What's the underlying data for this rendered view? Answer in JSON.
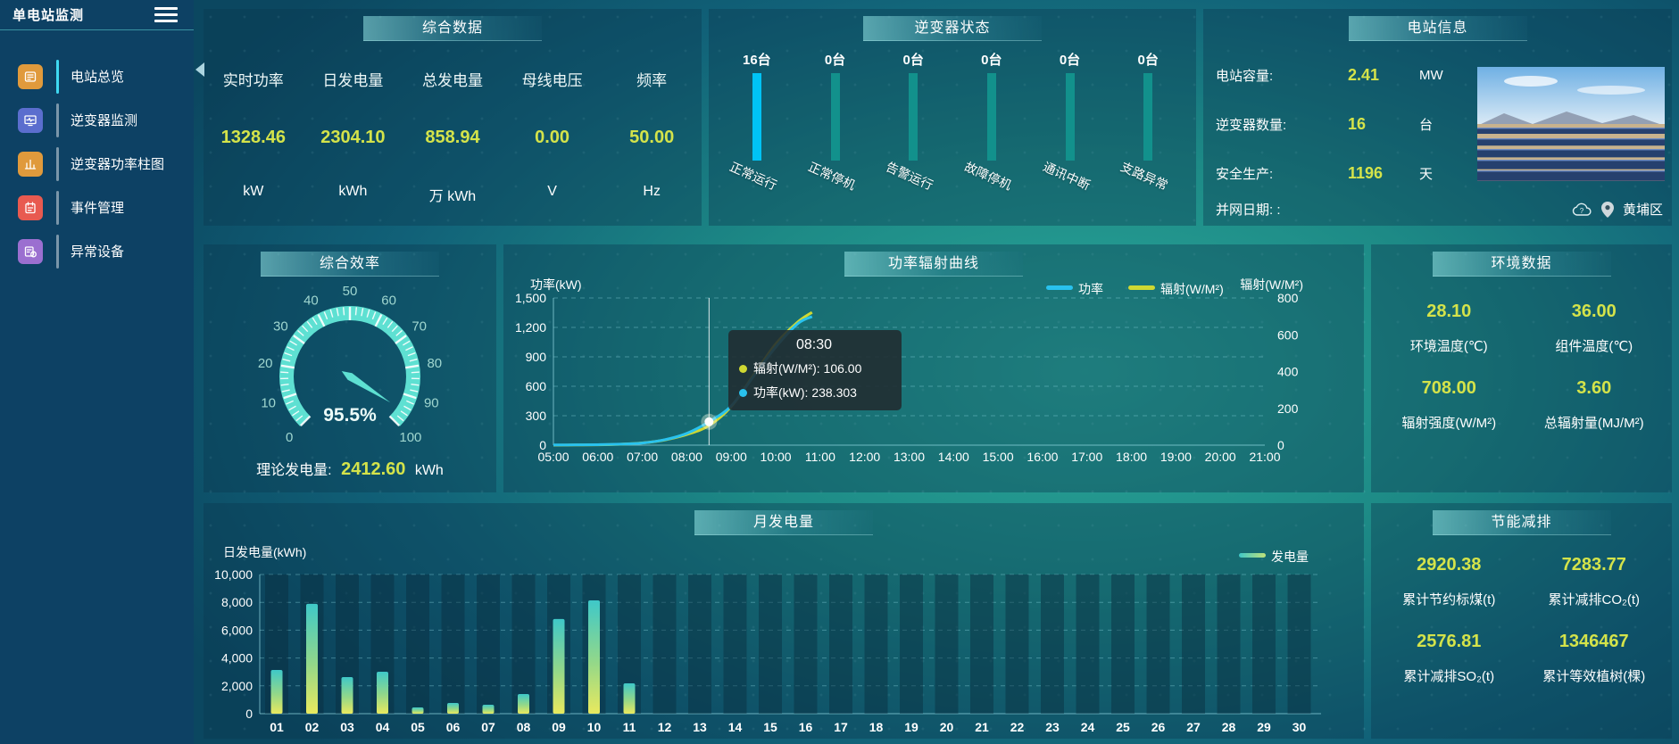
{
  "header": {
    "title": "单电站监测"
  },
  "sidebar": {
    "items": [
      {
        "label": "电站总览",
        "icon": "overview-icon",
        "color": "#e09a3c",
        "active": true
      },
      {
        "label": "逆变器监测",
        "icon": "inverter-monitor-icon",
        "color": "#5b6ece",
        "active": false
      },
      {
        "label": "逆变器功率柱图",
        "icon": "power-bars-icon",
        "color": "#e09a3c",
        "active": false
      },
      {
        "label": "事件管理",
        "icon": "event-manage-icon",
        "color": "#e85a50",
        "active": false
      },
      {
        "label": "异常设备",
        "icon": "abnormal-device-icon",
        "color": "#9b6fd0",
        "active": false
      }
    ]
  },
  "panels": {
    "summary": {
      "title": "综合数据",
      "metrics": [
        {
          "label": "实时功率",
          "value": "1328.46",
          "unit": "kW"
        },
        {
          "label": "日发电量",
          "value": "2304.10",
          "unit": "kWh"
        },
        {
          "label": "总发电量",
          "value": "858.94",
          "unit": "万 kWh"
        },
        {
          "label": "母线电压",
          "value": "0.00",
          "unit": "V"
        },
        {
          "label": "频率",
          "value": "50.00",
          "unit": "Hz"
        }
      ]
    },
    "inverter_status": {
      "title": "逆变器状态"
    },
    "station_info": {
      "title": "电站信息",
      "rows": [
        {
          "label": "电站容量:",
          "value": "2.41",
          "unit": "MW"
        },
        {
          "label": "逆变器数量:",
          "value": "16",
          "unit": "台"
        },
        {
          "label": "安全生产:",
          "value": "1196",
          "unit": "天"
        }
      ],
      "grid_date_label": "并网日期: ",
      "grid_date_value": ":",
      "location": "黄埔区"
    },
    "efficiency": {
      "title": "综合效率",
      "theory_label": "理论发电量:",
      "theory_value": "2412.60",
      "theory_unit": "kWh"
    },
    "power_radiation": {
      "title": "功率辐射曲线"
    },
    "environment": {
      "title": "环境数据",
      "stats": [
        {
          "value": "28.10",
          "label": "环境温度(℃)"
        },
        {
          "value": "36.00",
          "label": "组件温度(℃)"
        },
        {
          "value": "708.00",
          "label": "辐射强度(W/M²)"
        },
        {
          "value": "3.60",
          "label": "总辐射量(MJ/M²)"
        }
      ]
    },
    "monthly": {
      "title": "月发电量"
    },
    "saving": {
      "title": "节能减排",
      "stats": [
        {
          "value": "2920.38",
          "label": "累计节约标煤(t)"
        },
        {
          "value": "7283.77",
          "label": "累计减排CO₂(t)"
        },
        {
          "value": "2576.81",
          "label": "累计减排SO₂(t)"
        },
        {
          "value": "1346467",
          "label": "累计等效植树(棵)"
        }
      ]
    }
  },
  "colors": {
    "value_yellow": "#d4e34a",
    "bar_highlight": "#00c3f5",
    "bar_normal": "#12918c",
    "gauge_arc": "#5ee0d2",
    "line_power": "#29c2ee",
    "line_radiation": "#cfd832",
    "axis": "rgba(150,220,230,0.7)",
    "grid": "rgba(140,215,225,0.4)"
  },
  "chart_data": [
    {
      "id": "inverter-status",
      "type": "bar",
      "title": "逆变器状态",
      "categories": [
        "正常运行",
        "正常停机",
        "告警运行",
        "故障停机",
        "通讯中断",
        "支路异常"
      ],
      "values": [
        16,
        0,
        0,
        0,
        0,
        0
      ],
      "count_labels": [
        "16台",
        "0台",
        "0台",
        "0台",
        "0台",
        "0台"
      ],
      "note": "equal-height pictorial status bars; first category highlighted blue"
    },
    {
      "id": "efficiency-gauge",
      "type": "gauge",
      "title": "综合效率",
      "value": 95.5,
      "display": "95.5%",
      "min": 0,
      "max": 100,
      "tick_step": 10
    },
    {
      "id": "power-radiation",
      "type": "line",
      "title": "功率辐射曲线",
      "x_ticks": [
        "05:00",
        "06:00",
        "07:00",
        "08:00",
        "09:00",
        "10:00",
        "11:00",
        "12:00",
        "13:00",
        "14:00",
        "15:00",
        "16:00",
        "17:00",
        "18:00",
        "19:00",
        "20:00",
        "21:00"
      ],
      "left_axis": {
        "label": "功率(kW)",
        "ticks": [
          0,
          300,
          600,
          900,
          1200,
          1500
        ],
        "tick_labels": [
          "0",
          "300",
          "600",
          "900",
          "1,200",
          "1,500"
        ],
        "max": 1500
      },
      "right_axis": {
        "label": "辐射(W/M²)",
        "ticks": [
          0,
          200,
          400,
          600,
          800
        ],
        "tick_labels": [
          "0",
          "200",
          "400",
          "600",
          "800"
        ],
        "max": 800
      },
      "legend": [
        {
          "name": "功率",
          "color": "#29c2ee"
        },
        {
          "name": "辐射(W/M²)",
          "color": "#cfd832"
        }
      ],
      "rows_format": [
        "time",
        "power_kw",
        "radiation_wm2"
      ],
      "rows": [
        [
          "05:00",
          2,
          0
        ],
        [
          "05:30",
          3,
          1
        ],
        [
          "06:00",
          5,
          2
        ],
        [
          "06:30",
          10,
          5
        ],
        [
          "07:00",
          22,
          12
        ],
        [
          "07:30",
          55,
          28
        ],
        [
          "08:00",
          120,
          58
        ],
        [
          "08:30",
          238.3,
          106
        ],
        [
          "09:00",
          400,
          210
        ],
        [
          "09:30",
          700,
          380
        ],
        [
          "10:00",
          1000,
          550
        ],
        [
          "10:30",
          1240,
          670
        ],
        [
          "10:49",
          1310,
          722
        ]
      ],
      "marker_time": "08:30",
      "tooltip": {
        "time": "08:30",
        "rows": [
          {
            "name": "辐射(W/M²)",
            "value": "106.00",
            "color": "#cfd832"
          },
          {
            "name": "功率(kW)",
            "value": "238.303",
            "color": "#29c2ee"
          }
        ]
      }
    },
    {
      "id": "monthly-generation",
      "type": "bar",
      "title": "月发电量",
      "ylabel": "日发电量(kWh)",
      "legend": "发电量",
      "categories": [
        "01",
        "02",
        "03",
        "04",
        "05",
        "06",
        "07",
        "08",
        "09",
        "10",
        "11",
        "12",
        "13",
        "14",
        "15",
        "16",
        "17",
        "18",
        "19",
        "20",
        "21",
        "22",
        "23",
        "24",
        "25",
        "26",
        "27",
        "28",
        "29",
        "30"
      ],
      "values": [
        3140,
        7890,
        2630,
        3010,
        450,
        770,
        640,
        1410,
        6800,
        8140,
        2180,
        0,
        0,
        0,
        0,
        0,
        0,
        0,
        0,
        0,
        0,
        0,
        0,
        0,
        0,
        0,
        0,
        0,
        0,
        0
      ],
      "ylim": [
        0,
        10000
      ],
      "ytick_labels": [
        "0",
        "2,000",
        "4,000",
        "6,000",
        "8,000",
        "10,000"
      ]
    }
  ]
}
